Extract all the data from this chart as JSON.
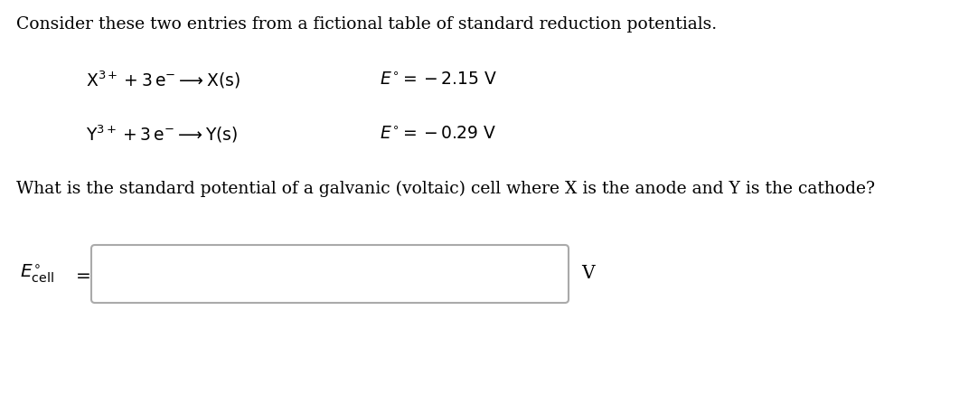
{
  "background_color": "#ffffff",
  "title_text": "Consider these two entries from a fictional table of standard reduction potentials.",
  "title_fontsize": 13.5,
  "eq1_reaction": "$\\mathrm{X^{3+} + 3\\,e^{-} \\longrightarrow X(s)}$",
  "eq1_potential": "$E^{\\circ} = -2.15\\ \\mathrm{V}$",
  "eq2_reaction": "$\\mathrm{Y^{3+} + 3\\,e^{-} \\longrightarrow Y(s)}$",
  "eq2_potential": "$E^{\\circ} = -0.29\\ \\mathrm{V}$",
  "question_text": "What is the standard potential of a galvanic (voltaic) cell where X is the anode and Y is the cathode?",
  "question_fontsize": 13.5,
  "label_text": "$E^{\\circ}_{\\mathrm{cell}}$",
  "equals_text": "$=$",
  "unit_text": "V",
  "eq_fontsize": 13.5,
  "box_color": "#aaaaaa",
  "text_color": "#000000"
}
